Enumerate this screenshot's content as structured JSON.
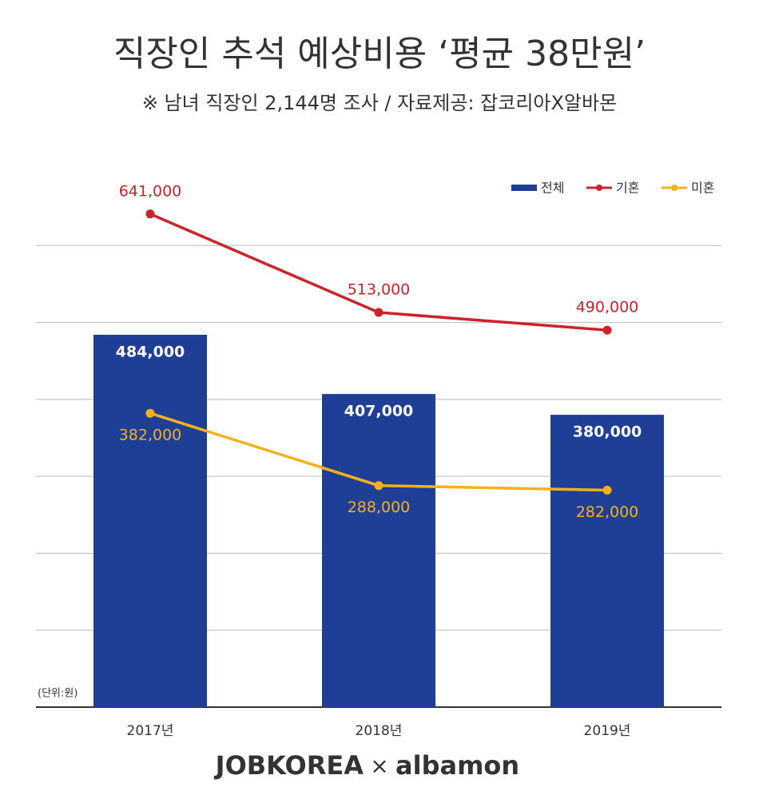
{
  "chart_data": {
    "type": "combo",
    "title": "직장인 추석 예상비용 ‘평균 38만원’",
    "subtitle": "※ 남녀 직장인 2,144명 조사 /   자료제공: 잡코리아X알바몬",
    "unit_note": "(단위:원)",
    "categories": [
      "2017년",
      "2018년",
      "2019년"
    ],
    "series": [
      {
        "name": "전체",
        "type": "bar",
        "color": "#1f3f96",
        "values": [
          484000,
          407000,
          380000
        ],
        "value_labels": [
          "484,000",
          "407,000",
          "380,000"
        ]
      },
      {
        "name": "기혼",
        "type": "line",
        "color": "#cc2229",
        "values": [
          641000,
          513000,
          490000
        ],
        "value_labels": [
          "641,000",
          "513,000",
          "490,000"
        ]
      },
      {
        "name": "미혼",
        "type": "line",
        "color": "#f5b01e",
        "values": [
          382000,
          288000,
          282000
        ],
        "value_labels": [
          "382,000",
          "288,000",
          "282,000"
        ]
      }
    ],
    "ylim": [
      0,
      700000
    ],
    "yticks": [
      0,
      100000,
      200000,
      300000,
      400000,
      500000,
      600000
    ],
    "grid": true,
    "legend": "top-right",
    "footer": {
      "left": "JOBKOREA",
      "sep": "×",
      "right": "albamon"
    }
  }
}
